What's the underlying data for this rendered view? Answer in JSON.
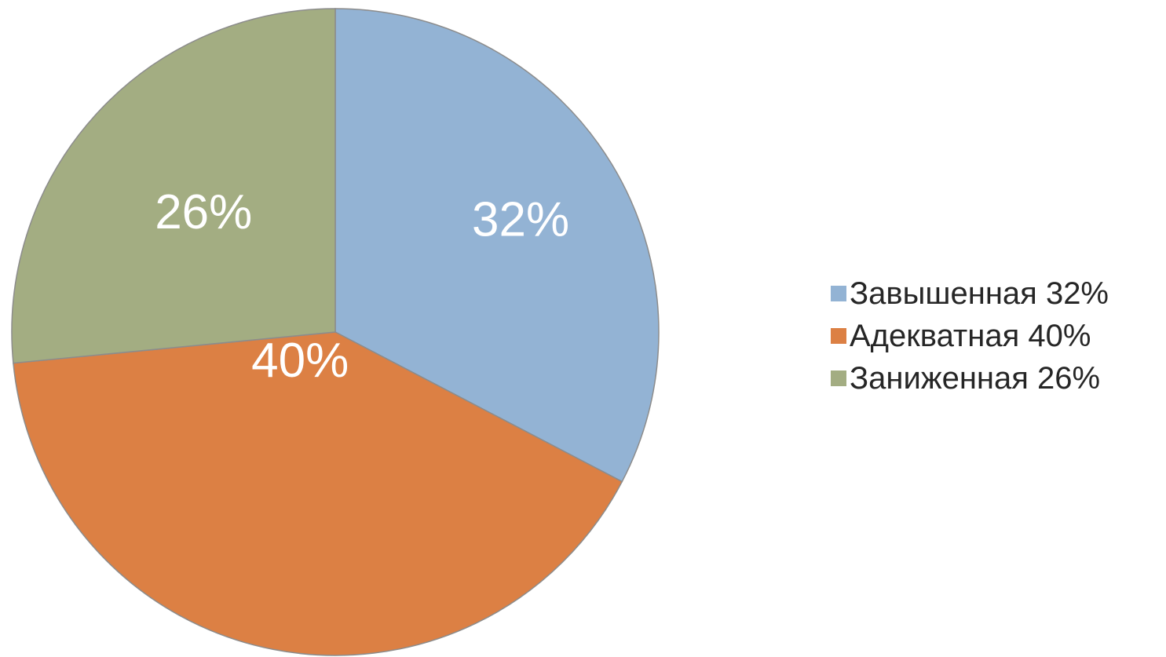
{
  "chart_data": {
    "type": "pie",
    "start_angle": 0,
    "direction": "clockwise",
    "legend_position": "right",
    "slices": [
      {
        "label": "Завышенная 32%",
        "value": 32,
        "data_label": "32%",
        "color": "#93b3d4"
      },
      {
        "label": "Адекватная 40%",
        "value": 40,
        "data_label": "40%",
        "color": "#dc8044"
      },
      {
        "label": "Заниженная 26%",
        "value": 26,
        "data_label": "26%",
        "color": "#a3ad82"
      }
    ]
  }
}
